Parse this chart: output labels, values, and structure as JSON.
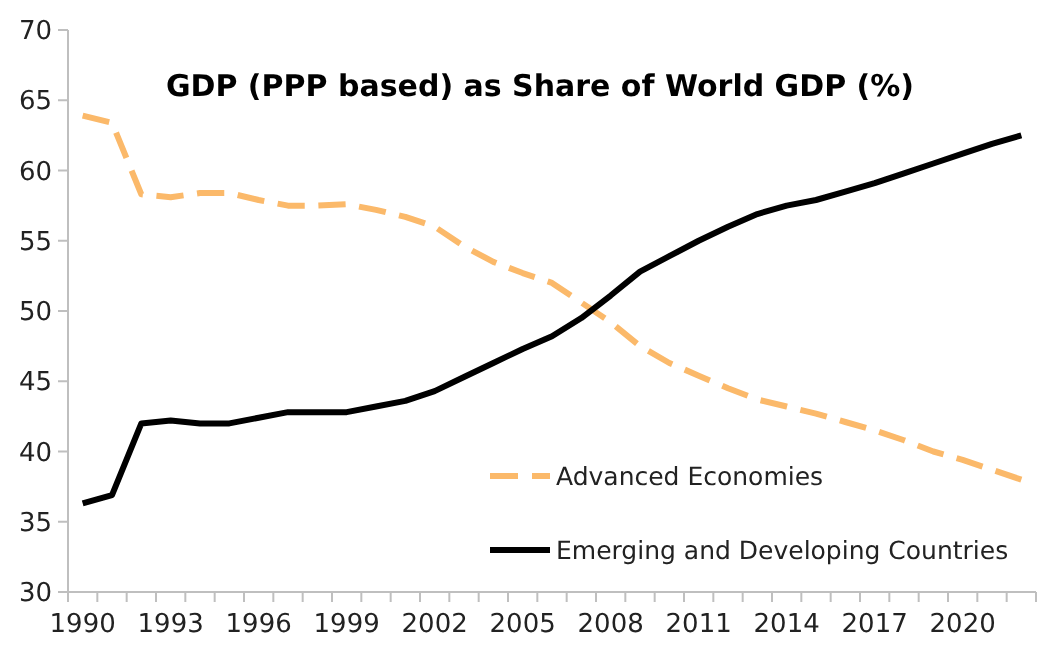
{
  "chart_data": {
    "type": "line",
    "title": "GDP (PPP based) as Share of World GDP (%)",
    "categories": [
      "1990",
      null,
      null,
      "1993",
      null,
      null,
      "1996",
      null,
      null,
      "1999",
      null,
      null,
      "2002",
      null,
      null,
      "2005",
      null,
      null,
      "2008",
      null,
      null,
      "2011",
      null,
      null,
      "2014",
      null,
      null,
      "2017",
      null,
      null,
      "2020",
      null,
      null
    ],
    "series": [
      {
        "name": "Advanced Economies",
        "color": "#fbb96a",
        "line_style": "dashed",
        "values": [
          63.9,
          63.4,
          58.3,
          58.1,
          58.4,
          58.4,
          57.9,
          57.5,
          57.5,
          57.6,
          57.2,
          56.7,
          56.0,
          54.6,
          53.5,
          52.7,
          52.0,
          50.6,
          49.2,
          47.5,
          46.3,
          45.4,
          44.5,
          43.7,
          43.2,
          42.7,
          42.1,
          41.5,
          40.8,
          40.0,
          39.4,
          38.7,
          38.0
        ]
      },
      {
        "name": "Emerging and Developing Countries",
        "color": "#000000",
        "line_style": "solid",
        "values": [
          36.3,
          36.9,
          42.0,
          42.2,
          42.0,
          42.0,
          42.4,
          42.8,
          42.8,
          42.8,
          43.2,
          43.6,
          44.3,
          45.3,
          46.3,
          47.3,
          48.2,
          49.5,
          51.1,
          52.8,
          53.9,
          55.0,
          56.0,
          56.9,
          57.5,
          57.9,
          58.5,
          59.1,
          59.8,
          60.5,
          61.2,
          61.9,
          62.5
        ]
      }
    ],
    "ylim": [
      30,
      70
    ],
    "yticks": [
      30,
      35,
      40,
      45,
      50,
      55,
      60,
      65,
      70
    ],
    "grid": false,
    "legend": "bottom right",
    "marker": "none"
  }
}
